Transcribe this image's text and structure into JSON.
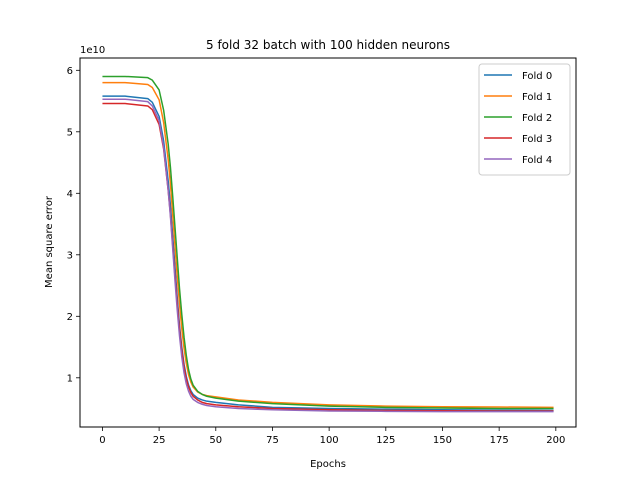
{
  "chart_data": {
    "type": "line",
    "title": "5 fold 32 batch with 100 hidden neurons",
    "xlabel": "Epochs",
    "ylabel": "Mean square error",
    "y_scale_label": "1e10",
    "xlim": [
      -9.9,
      208.9
    ],
    "ylim": [
      0.2,
      6.2
    ],
    "x_ticks": [
      0,
      25,
      50,
      75,
      100,
      125,
      150,
      175,
      200
    ],
    "y_ticks": [
      1,
      2,
      3,
      4,
      5,
      6
    ],
    "grid": false,
    "legend_position": "top-right",
    "x": [
      0,
      10,
      20,
      22,
      25,
      27,
      29,
      30,
      31,
      32,
      33,
      34,
      35,
      36,
      37,
      38,
      39,
      40,
      42,
      44,
      46,
      50,
      60,
      75,
      100,
      125,
      150,
      175,
      199
    ],
    "series": [
      {
        "name": "Fold 0",
        "color": "#1f77b4",
        "values": [
          5.58,
          5.58,
          5.54,
          5.48,
          5.25,
          4.85,
          4.2,
          3.8,
          3.3,
          2.8,
          2.3,
          1.85,
          1.5,
          1.22,
          1.02,
          0.88,
          0.79,
          0.73,
          0.67,
          0.64,
          0.62,
          0.6,
          0.56,
          0.52,
          0.5,
          0.49,
          0.48,
          0.475,
          0.47
        ]
      },
      {
        "name": "Fold 1",
        "color": "#ff7f0e",
        "values": [
          5.8,
          5.8,
          5.77,
          5.72,
          5.52,
          5.15,
          4.55,
          4.15,
          3.65,
          3.15,
          2.65,
          2.2,
          1.8,
          1.48,
          1.23,
          1.05,
          0.93,
          0.85,
          0.77,
          0.73,
          0.71,
          0.69,
          0.64,
          0.6,
          0.56,
          0.54,
          0.53,
          0.525,
          0.52
        ]
      },
      {
        "name": "Fold 2",
        "color": "#2ca02c",
        "values": [
          5.9,
          5.9,
          5.88,
          5.84,
          5.68,
          5.35,
          4.8,
          4.42,
          3.95,
          3.45,
          2.95,
          2.45,
          2.03,
          1.66,
          1.36,
          1.13,
          0.98,
          0.88,
          0.78,
          0.73,
          0.7,
          0.67,
          0.62,
          0.58,
          0.54,
          0.52,
          0.51,
          0.5,
          0.5
        ]
      },
      {
        "name": "Fold 3",
        "color": "#d62728",
        "values": [
          5.46,
          5.46,
          5.42,
          5.36,
          5.12,
          4.72,
          4.05,
          3.65,
          3.15,
          2.65,
          2.2,
          1.78,
          1.44,
          1.18,
          0.98,
          0.85,
          0.76,
          0.7,
          0.64,
          0.6,
          0.58,
          0.56,
          0.53,
          0.5,
          0.48,
          0.47,
          0.465,
          0.46,
          0.46
        ]
      },
      {
        "name": "Fold 4",
        "color": "#9467bd",
        "values": [
          5.53,
          5.53,
          5.49,
          5.42,
          5.18,
          4.75,
          4.05,
          3.62,
          3.1,
          2.58,
          2.1,
          1.68,
          1.34,
          1.08,
          0.9,
          0.78,
          0.7,
          0.65,
          0.6,
          0.57,
          0.55,
          0.53,
          0.5,
          0.48,
          0.46,
          0.455,
          0.45,
          0.45,
          0.45
        ]
      }
    ]
  }
}
